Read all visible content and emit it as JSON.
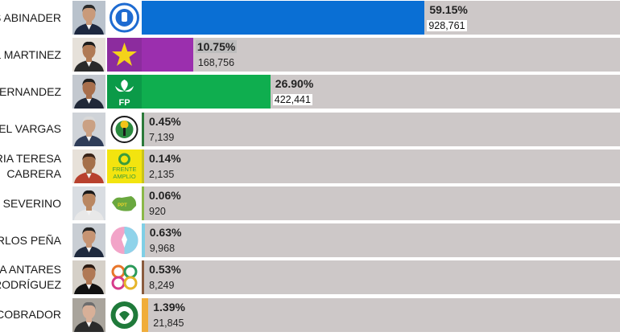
{
  "chart_data": {
    "type": "bar",
    "orientation": "horizontal",
    "categories": [
      [
        "S ABINADER"
      ],
      [
        "L MARTINEZ"
      ],
      [
        "ERNANDEZ"
      ],
      [
        "UEL VARGAS"
      ],
      [
        "RIA TERESA",
        "CABRERA"
      ],
      [
        "O SEVERINO"
      ],
      [
        "RLOS PEÑA"
      ],
      [
        "A ANTARES",
        "RODRÍGUEZ"
      ],
      [
        "COBRADOR"
      ]
    ],
    "values": [
      59.15,
      10.75,
      26.9,
      0.45,
      0.14,
      0.06,
      0.63,
      0.53,
      1.39
    ],
    "value_labels": [
      "59.15%",
      "10.75%",
      "26.90%",
      "0.45%",
      "0.14%",
      "0.06%",
      "0.63%",
      "0.53%",
      "1.39%"
    ],
    "votes": [
      "928,761",
      "168,756",
      "422,441",
      "7,139",
      "2,135",
      "920",
      "9,968",
      "8,249",
      "21,845"
    ],
    "colors": [
      "#0a6fd4",
      "#9b2fae",
      "#0fae4f",
      "#2b7a3a",
      "#c9c41a",
      "#8ab848",
      "#7fcfe6",
      "#8a5b3e",
      "#f0ad3a"
    ],
    "party_logo_text": [
      "",
      "",
      "FP",
      "",
      "FRENTE AMPLIO",
      "PPT",
      "",
      "",
      ""
    ],
    "xlim": [
      0,
      100
    ],
    "track_color": "#cdc8c8"
  }
}
